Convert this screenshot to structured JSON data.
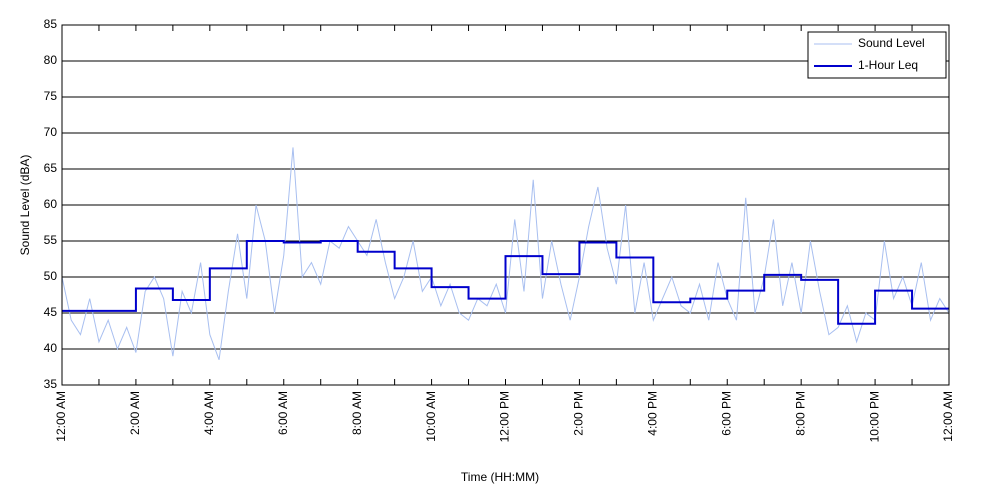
{
  "chart_data": {
    "type": "line",
    "xlabel": "Time (HH:MM)",
    "ylabel": "Sound Level (dBA)",
    "xlim": [
      0,
      24
    ],
    "xticks": [
      {
        "value": 0,
        "label": "12:00 AM"
      },
      {
        "value": 2,
        "label": "2:00 AM"
      },
      {
        "value": 4,
        "label": "4:00 AM"
      },
      {
        "value": 6,
        "label": "6:00 AM"
      },
      {
        "value": 8,
        "label": "8:00 AM"
      },
      {
        "value": 10,
        "label": "10:00 AM"
      },
      {
        "value": 12,
        "label": "12:00 PM"
      },
      {
        "value": 14,
        "label": "2:00 PM"
      },
      {
        "value": 16,
        "label": "4:00 PM"
      },
      {
        "value": 18,
        "label": "6:00 PM"
      },
      {
        "value": 20,
        "label": "8:00 PM"
      },
      {
        "value": 22,
        "label": "10:00 PM"
      },
      {
        "value": 24,
        "label": "12:00 AM"
      }
    ],
    "xminorticks": [
      1,
      3,
      5,
      7,
      9,
      11,
      13,
      15,
      17,
      19,
      21,
      23
    ],
    "ylim": [
      35,
      85
    ],
    "yticks": [
      35,
      40,
      45,
      50,
      55,
      60,
      65,
      70,
      75,
      80,
      85
    ],
    "grid": true,
    "legend": "upper right",
    "series": [
      {
        "name": "Sound Level",
        "color": "#a8bff0",
        "step": false,
        "x": [
          0,
          0.25,
          0.5,
          0.75,
          1,
          1.25,
          1.5,
          1.75,
          2,
          2.25,
          2.5,
          2.75,
          3,
          3.25,
          3.5,
          3.75,
          4,
          4.25,
          4.5,
          4.75,
          5,
          5.25,
          5.5,
          5.75,
          6,
          6.25,
          6.5,
          6.75,
          7,
          7.25,
          7.5,
          7.75,
          8,
          8.25,
          8.5,
          8.75,
          9,
          9.25,
          9.5,
          9.75,
          10,
          10.25,
          10.5,
          10.75,
          11,
          11.25,
          11.5,
          11.75,
          12,
          12.25,
          12.5,
          12.75,
          13,
          13.25,
          13.5,
          13.75,
          14,
          14.25,
          14.5,
          14.75,
          15,
          15.25,
          15.5,
          15.75,
          16,
          16.25,
          16.5,
          16.75,
          17,
          17.25,
          17.5,
          17.75,
          18,
          18.25,
          18.5,
          18.75,
          19,
          19.25,
          19.5,
          19.75,
          20,
          20.25,
          20.5,
          20.75,
          21,
          21.25,
          21.5,
          21.75,
          22,
          22.25,
          22.5,
          22.75,
          23,
          23.25,
          23.5,
          23.75,
          24
        ],
        "values": [
          50,
          44,
          42,
          47,
          41,
          44,
          40,
          43,
          39.5,
          48,
          50,
          47,
          39,
          48,
          45,
          52,
          42,
          38.5,
          48,
          56,
          47,
          60,
          55,
          45,
          53,
          68,
          50,
          52,
          49,
          55,
          54,
          57,
          55,
          53,
          58,
          52,
          47,
          50,
          55,
          48,
          50,
          46,
          49,
          45,
          44,
          47,
          46,
          49,
          45,
          58,
          48,
          63.5,
          47,
          55,
          49,
          44,
          50,
          57,
          62.5,
          54,
          49,
          60,
          45,
          52,
          44,
          47,
          50,
          46,
          45,
          49,
          44,
          52,
          47,
          44,
          61,
          45,
          50,
          58,
          46,
          52,
          45,
          55,
          48,
          42,
          43,
          46,
          41,
          45,
          44,
          55,
          47,
          50,
          46,
          52,
          44,
          47,
          45
        ]
      },
      {
        "name": "1-Hour Leq",
        "color": "#0000cc",
        "step": true,
        "x": [
          0,
          1,
          2,
          3,
          4,
          5,
          6,
          7,
          8,
          9,
          10,
          11,
          12,
          13,
          14,
          15,
          16,
          17,
          18,
          19,
          20,
          21,
          22,
          23
        ],
        "values": [
          45.3,
          45.3,
          48.4,
          46.8,
          51.2,
          55.0,
          54.8,
          55.0,
          53.5,
          51.2,
          48.6,
          47.0,
          52.9,
          50.4,
          54.8,
          52.7,
          46.5,
          47.0,
          48.1,
          50.3,
          49.6,
          43.5,
          48.1,
          45.6
        ]
      }
    ]
  }
}
